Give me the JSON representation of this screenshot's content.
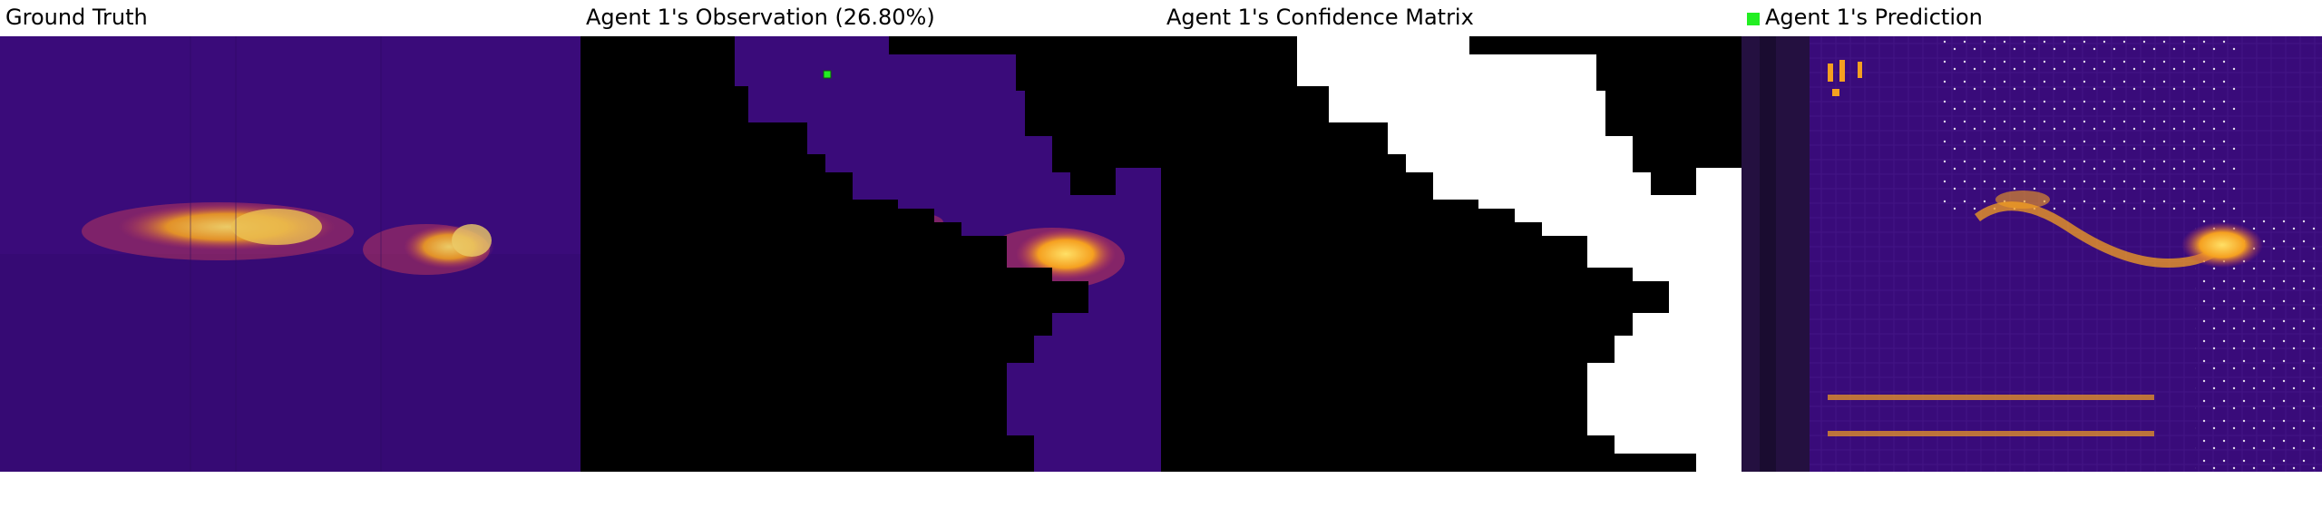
{
  "panels": [
    {
      "id": "ground-truth",
      "title": "Ground Truth"
    },
    {
      "id": "observation",
      "title": "Agent 1's Observation (26.80%)"
    },
    {
      "id": "confidence",
      "title": "Agent 1's Confidence Matrix"
    },
    {
      "id": "prediction",
      "title": "Agent 1's Prediction"
    }
  ],
  "colors": {
    "background_purple": "#3a0b7a",
    "dark_purple": "#2b0a5e",
    "hot_orange": "#f5a020",
    "hot_yellow": "#ffe066",
    "marker_green": "#22ee22",
    "mask_white": "#ffffff",
    "mask_black": "#000000"
  }
}
